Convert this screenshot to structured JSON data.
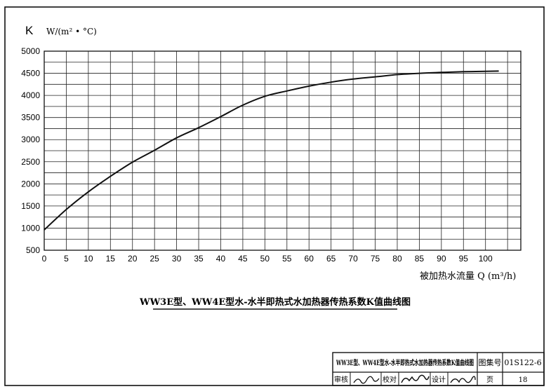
{
  "chart_data": {
    "type": "line",
    "title": "WW3E型、WW4E型水-水半即热式水加热器传热系数K值曲线图",
    "ylabel_symbol": "K",
    "ylabel_unit": "W/(m² • °C)",
    "xlabel": "被加热水流量 Q (m³/h)",
    "xlim": [
      0,
      108
    ],
    "ylim": [
      500,
      5000
    ],
    "x_ticks": [
      0,
      5,
      10,
      15,
      20,
      25,
      30,
      35,
      40,
      45,
      50,
      55,
      60,
      65,
      70,
      75,
      80,
      85,
      90,
      95,
      100
    ],
    "y_ticks": [
      500,
      1000,
      1500,
      2000,
      2500,
      3000,
      3500,
      4000,
      4500,
      5000
    ],
    "grid": true,
    "series": [
      {
        "x": [
          0,
          5,
          10,
          15,
          20,
          25,
          30,
          35,
          40,
          45,
          50,
          55,
          60,
          65,
          70,
          75,
          80,
          85,
          90,
          95,
          100,
          103
        ],
        "y": [
          960,
          1420,
          1820,
          2170,
          2490,
          2760,
          3040,
          3270,
          3520,
          3780,
          3980,
          4100,
          4210,
          4300,
          4370,
          4420,
          4470,
          4500,
          4520,
          4535,
          4545,
          4550
        ]
      }
    ]
  },
  "title_block": {
    "drawing_title": "WW3E型、WW4E型水-水半即热式水加热器传热系数K值曲线图",
    "atlas_label": "图集号",
    "atlas_number": "01S122-6",
    "review_label": "审核",
    "check_label": "校对",
    "design_label": "设计",
    "page_label": "页",
    "page_number": "18"
  },
  "colors": {
    "ink": "#111111",
    "grid": "#222222",
    "paper": "#ffffff"
  }
}
